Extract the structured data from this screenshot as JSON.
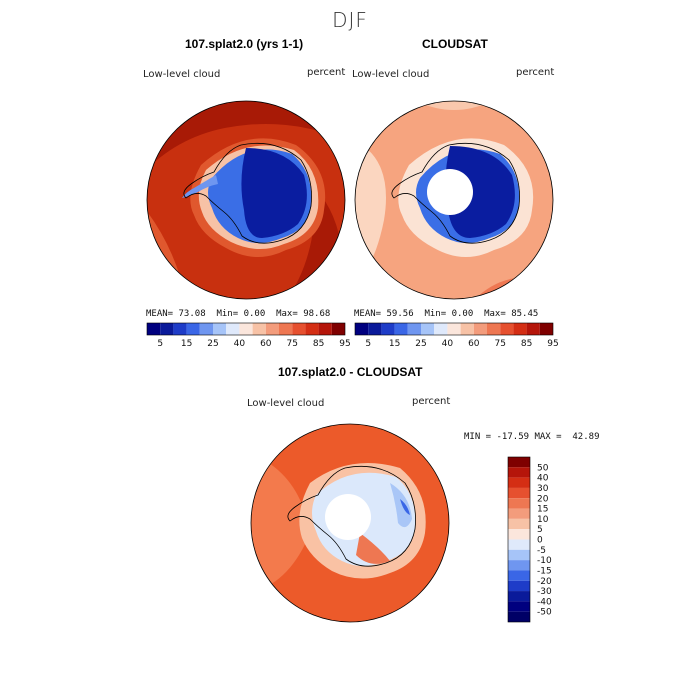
{
  "page": {
    "title": "DJF",
    "bottom_title": "107.splat2.0 - CLOUDSAT"
  },
  "panels": {
    "model": {
      "title": "107.splat2.0 (yrs 1-1)",
      "left_label": "Low-level cloud",
      "right_label": "percent",
      "stats": {
        "mean": "73.08",
        "min": "0.00",
        "max": "98.68"
      }
    },
    "obs": {
      "title": "CLOUDSAT",
      "left_label": "Low-level cloud",
      "right_label": "percent",
      "stats": {
        "mean": "59.56",
        "min": "0.00",
        "max": "85.45"
      }
    },
    "diff": {
      "left_label": "Low-level cloud",
      "right_label": "percent",
      "stats": {
        "min": "-17.59",
        "max": "42.89"
      }
    }
  },
  "labels": {
    "mean": "MEAN=",
    "min": "Min=",
    "max": "Max=",
    "min_upper": "MIN =",
    "max_upper": "MAX ="
  },
  "colorbars": {
    "abs": {
      "ticks": [
        "5",
        "15",
        "25",
        "40",
        "60",
        "75",
        "85",
        "95"
      ],
      "colors": [
        "#00007f",
        "#0a1a9a",
        "#1e3cc8",
        "#3a66e6",
        "#6f96f0",
        "#a6c4f8",
        "#dfe9fb",
        "#fbe6dc",
        "#f7c2a6",
        "#f39c7c",
        "#ee7752",
        "#e6502f",
        "#d42e14",
        "#b5150a",
        "#7f0000"
      ]
    },
    "diff": {
      "ticks": [
        "50",
        "40",
        "30",
        "20",
        "15",
        "10",
        "5",
        "0",
        "-5",
        "-10",
        "-15",
        "-20",
        "-30",
        "-40",
        "-50"
      ],
      "colors": [
        "#7f0000",
        "#b5150a",
        "#d42e14",
        "#e6502f",
        "#ee7752",
        "#f39c7c",
        "#f7c2a6",
        "#fbe6dc",
        "#dfe9fb",
        "#a6c4f8",
        "#6f96f0",
        "#3a66e6",
        "#1e3cc8",
        "#0a1a9a",
        "#00007f",
        "#000066"
      ]
    }
  },
  "maps": {
    "model": {
      "ocean": "#c8300f",
      "ocean_alt": "#a81a06",
      "coast_band": "#e0582e",
      "land": "#0a1da0",
      "land_edge": "#3a6ee6",
      "pole_hole": false
    },
    "obs": {
      "ocean": "#f6a47f",
      "ocean_alt": "#f9c8ad",
      "coast_band": "#fbe3d4",
      "land": "#0a1da0",
      "land_edge": "#3a6ee6",
      "pole_hole": true
    },
    "diff": {
      "ocean": "#ec5a2a",
      "ocean_alt": "#f37a4c",
      "coast_band": "#f9c2a4",
      "land": "#dbe8fb",
      "land_edge": "#a9c6f7",
      "pole_hole": true
    }
  }
}
